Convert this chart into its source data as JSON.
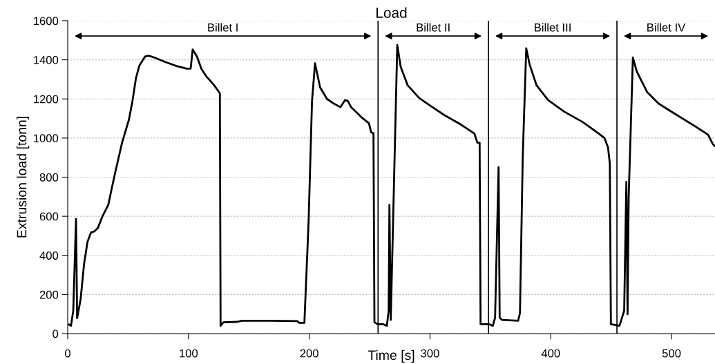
{
  "chart_data": {
    "type": "line",
    "title": "Load",
    "xlabel": "Time [s]",
    "ylabel": "Extrusion load [tonn]",
    "xlim": [
      0,
      536
    ],
    "xticks": [
      0,
      100,
      200,
      300,
      400,
      500
    ],
    "ylim": [
      0,
      1600
    ],
    "yticks": [
      0,
      200,
      400,
      600,
      800,
      1000,
      1200,
      1400,
      1600
    ],
    "grid": "y",
    "legend": false,
    "marker": "none",
    "line_style": "solid",
    "ref_lines": [
      {
        "axis": "x",
        "value": 257,
        "color": "#000000"
      },
      {
        "axis": "x",
        "value": 348.4,
        "color": "#000000"
      },
      {
        "axis": "x",
        "value": 454.8,
        "color": "#000000"
      }
    ],
    "annotations": [
      "Billet I",
      "Billet II",
      "Billet III",
      "Billet IV"
    ],
    "series": [
      {
        "color": "#000000",
        "x": [
          1.1,
          2.7,
          4.6,
          6.9,
          7.8,
          10.7,
          13.5,
          16.4,
          19.3,
          22.1,
          25,
          28.8,
          33.6,
          36.4,
          40.2,
          45,
          50.7,
          53.6,
          56.5,
          59.3,
          64.1,
          66.9,
          71.7,
          81.2,
          90.8,
          98.4,
          101.8,
          103.5,
          107,
          110.8,
          114.6,
          121.3,
          126,
          126.6,
          128.9,
          140.3,
          144.2,
          167,
          190,
          191.8,
          196,
          199.5,
          202.3,
          204.8,
          209,
          214.7,
          220.4,
          225.8,
          229.6,
          231.9,
          234.7,
          243.3,
          249.4,
          251.3,
          253.2,
          254,
          256.6,
          261.4,
          264.3,
          265.8,
          266.4,
          267.5,
          272.9,
          275.7,
          281.5,
          291,
          300.5,
          312,
          325.3,
          336.8,
          339.2,
          341.1,
          341.9,
          349.1,
          352,
          353.9,
          356.8,
          357.7,
          359.7,
          373,
          374.5,
          376.8,
          379.7,
          382.5,
          388.2,
          397.8,
          411.1,
          426.4,
          439.7,
          444.5,
          447.4,
          448.9,
          449.8,
          456.9,
          460.8,
          462.6,
          463.6,
          464.5,
          468,
          471.2,
          479.8,
          489.3,
          504.6,
          519.8,
          530.3,
          534.1,
          535.6
        ],
        "values": [
          46,
          40,
          117,
          587,
          79,
          176,
          353,
          470,
          517,
          523,
          540,
          600,
          658,
          741,
          847,
          976,
          1094,
          1188,
          1306,
          1370,
          1417,
          1421,
          1412,
          1388,
          1367,
          1355,
          1355,
          1453,
          1417,
          1353,
          1317,
          1270,
          1229,
          40,
          58,
          60,
          66,
          66,
          64,
          55,
          55,
          576,
          1188,
          1382,
          1259,
          1200,
          1176,
          1158,
          1194,
          1190,
          1158,
          1106,
          1076,
          1029,
          1025,
          58,
          48,
          48,
          40,
          117,
          658,
          70,
          1476,
          1365,
          1270,
          1205,
          1164,
          1117,
          1070,
          1023,
          976,
          976,
          48,
          48,
          40,
          81,
          852,
          81,
          70,
          66,
          105,
          905,
          1459,
          1376,
          1270,
          1194,
          1135,
          1082,
          1023,
          1000,
          953,
          870,
          48,
          40,
          117,
          776,
          99,
          693,
          1412,
          1341,
          1235,
          1176,
          1117,
          1059,
          1017,
          970,
          960
        ]
      }
    ]
  }
}
